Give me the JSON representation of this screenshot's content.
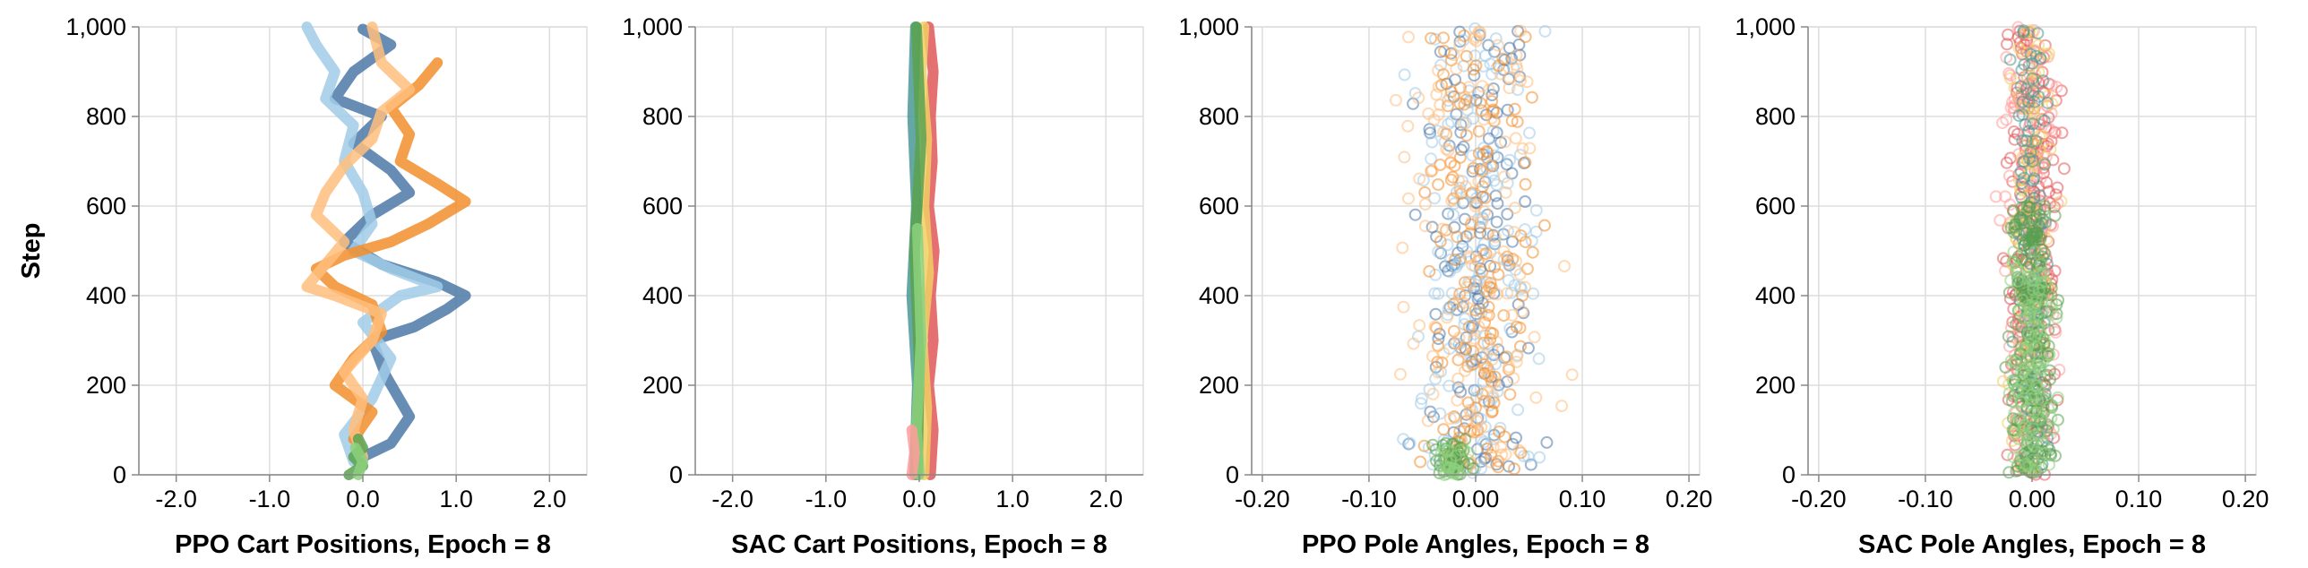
{
  "palette": {
    "dark_blue": "#4e79a7",
    "light_blue": "#a0cbe8",
    "orange": "#f28e2b",
    "light_orange": "#ffbe7d",
    "green": "#59a14f",
    "light_green": "#8cd17d",
    "yellow": "#f1ce63",
    "teal": "#499894",
    "red": "#e15759",
    "pink": "#ff9d9a",
    "grid": "#dddddd",
    "axis": "#888888"
  },
  "chart_data": [
    {
      "type": "line",
      "xlabel": "PPO Cart Positions, Epoch = 8",
      "ylabel": "Step",
      "xlim": [
        -2.4,
        2.4
      ],
      "ylim": [
        0,
        1000
      ],
      "x_ticks": [
        -2.0,
        -1.0,
        0.0,
        1.0,
        2.0
      ],
      "x_tick_labels": [
        "-2.0",
        "-1.0",
        "0.0",
        "1.0",
        "2.0"
      ],
      "y_ticks": [
        0,
        200,
        400,
        600,
        800,
        1000
      ],
      "y_tick_labels": [
        "0",
        "200",
        "400",
        "600",
        "800",
        "1,000"
      ],
      "grid": true,
      "series": [
        {
          "color": "#4e79a7",
          "points": [
            [
              0.0,
              40
            ],
            [
              0.3,
              70
            ],
            [
              0.5,
              130
            ],
            [
              0.25,
              220
            ],
            [
              0.1,
              300
            ],
            [
              0.55,
              330
            ],
            [
              0.9,
              370
            ],
            [
              1.1,
              400
            ],
            [
              0.8,
              430
            ],
            [
              0.2,
              470
            ],
            [
              -0.2,
              520
            ],
            [
              0.1,
              580
            ],
            [
              0.5,
              630
            ],
            [
              0.3,
              680
            ],
            [
              -0.1,
              740
            ],
            [
              0.2,
              800
            ],
            [
              -0.3,
              840
            ],
            [
              -0.1,
              900
            ],
            [
              0.3,
              960
            ],
            [
              0.0,
              995
            ]
          ]
        },
        {
          "color": "#a0cbe8",
          "points": [
            [
              -0.1,
              30
            ],
            [
              -0.2,
              90
            ],
            [
              0.1,
              170
            ],
            [
              0.3,
              260
            ],
            [
              0.0,
              340
            ],
            [
              0.4,
              400
            ],
            [
              0.8,
              420
            ],
            [
              0.3,
              460
            ],
            [
              -0.1,
              500
            ],
            [
              0.1,
              560
            ],
            [
              0.0,
              630
            ],
            [
              -0.2,
              700
            ],
            [
              -0.1,
              780
            ],
            [
              -0.4,
              840
            ],
            [
              -0.3,
              900
            ],
            [
              -0.5,
              960
            ],
            [
              -0.6,
              1000
            ]
          ]
        },
        {
          "color": "#f28e2b",
          "points": [
            [
              -0.1,
              80
            ],
            [
              0.1,
              140
            ],
            [
              -0.3,
              200
            ],
            [
              -0.1,
              260
            ],
            [
              0.2,
              320
            ],
            [
              0.1,
              380
            ],
            [
              -0.3,
              420
            ],
            [
              -0.5,
              460
            ],
            [
              -0.2,
              490
            ],
            [
              0.3,
              520
            ],
            [
              0.7,
              560
            ],
            [
              1.1,
              610
            ],
            [
              0.8,
              650
            ],
            [
              0.4,
              700
            ],
            [
              0.5,
              760
            ],
            [
              0.3,
              820
            ],
            [
              0.6,
              870
            ],
            [
              0.8,
              920
            ]
          ]
        },
        {
          "color": "#ffbe7d",
          "points": [
            [
              0.0,
              40
            ],
            [
              -0.1,
              100
            ],
            [
              0.0,
              170
            ],
            [
              -0.2,
              230
            ],
            [
              0.1,
              300
            ],
            [
              0.2,
              360
            ],
            [
              -0.3,
              400
            ],
            [
              -0.6,
              420
            ],
            [
              -0.4,
              470
            ],
            [
              -0.2,
              520
            ],
            [
              -0.5,
              580
            ],
            [
              -0.4,
              630
            ],
            [
              -0.2,
              690
            ],
            [
              0.1,
              750
            ],
            [
              0.2,
              810
            ],
            [
              0.5,
              860
            ],
            [
              0.2,
              920
            ],
            [
              0.1,
              1000
            ]
          ]
        },
        {
          "color": "#59a14f",
          "points": [
            [
              -0.15,
              0
            ],
            [
              0.0,
              20
            ],
            [
              -0.1,
              40
            ],
            [
              0.0,
              60
            ],
            [
              -0.05,
              80
            ]
          ]
        },
        {
          "color": "#8cd17d",
          "points": [
            [
              -0.05,
              0
            ],
            [
              0.0,
              30
            ],
            [
              -0.08,
              60
            ]
          ]
        }
      ]
    },
    {
      "type": "line",
      "xlabel": "SAC Cart Positions, Epoch = 8",
      "ylabel": "",
      "xlim": [
        -2.4,
        2.4
      ],
      "ylim": [
        0,
        1000
      ],
      "x_ticks": [
        -2.0,
        -1.0,
        0.0,
        1.0,
        2.0
      ],
      "x_tick_labels": [
        "-2.0",
        "-1.0",
        "0.0",
        "1.0",
        "2.0"
      ],
      "y_ticks": [
        0,
        200,
        400,
        600,
        800,
        1000
      ],
      "y_tick_labels": [
        "0",
        "200",
        "400",
        "600",
        "800",
        "1,000"
      ],
      "grid": true,
      "series": [
        {
          "color": "#e15759",
          "points": [
            [
              0.12,
              0
            ],
            [
              0.15,
              100
            ],
            [
              0.1,
              200
            ],
            [
              0.15,
              300
            ],
            [
              0.12,
              400
            ],
            [
              0.16,
              500
            ],
            [
              0.1,
              600
            ],
            [
              0.14,
              700
            ],
            [
              0.12,
              800
            ],
            [
              0.15,
              900
            ],
            [
              0.1,
              1000
            ]
          ]
        },
        {
          "color": "#f1ce63",
          "points": [
            [
              0.05,
              0
            ],
            [
              0.08,
              150
            ],
            [
              0.03,
              300
            ],
            [
              0.1,
              450
            ],
            [
              0.05,
              600
            ],
            [
              0.08,
              750
            ],
            [
              0.02,
              900
            ],
            [
              0.05,
              1000
            ]
          ]
        },
        {
          "color": "#499894",
          "points": [
            [
              -0.05,
              0
            ],
            [
              -0.02,
              200
            ],
            [
              -0.08,
              400
            ],
            [
              -0.03,
              600
            ],
            [
              -0.07,
              800
            ],
            [
              -0.04,
              1000
            ]
          ]
        },
        {
          "color": "#59a14f",
          "points": [
            [
              -0.02,
              0
            ],
            [
              0.0,
              250
            ],
            [
              -0.05,
              500
            ],
            [
              0.02,
              750
            ],
            [
              -0.03,
              1000
            ]
          ]
        },
        {
          "color": "#8cd17d",
          "points": [
            [
              0.0,
              0
            ],
            [
              -0.03,
              100
            ],
            [
              0.02,
              300
            ],
            [
              -0.02,
              550
            ]
          ]
        },
        {
          "color": "#ff9d9a",
          "points": [
            [
              -0.08,
              0
            ],
            [
              -0.05,
              50
            ],
            [
              -0.08,
              100
            ]
          ]
        }
      ]
    },
    {
      "type": "scatter",
      "xlabel": "PPO Pole Angles, Epoch = 8",
      "ylabel": "",
      "xlim": [
        -0.21,
        0.21
      ],
      "ylim": [
        0,
        1000
      ],
      "x_ticks": [
        -0.2,
        -0.1,
        0.0,
        0.1,
        0.2
      ],
      "x_tick_labels": [
        "-0.20",
        "-0.10",
        "0.00",
        "0.10",
        "0.20"
      ],
      "y_ticks": [
        0,
        200,
        400,
        600,
        800,
        1000
      ],
      "y_tick_labels": [
        "0",
        "200",
        "400",
        "600",
        "800",
        "1,000"
      ],
      "grid": true,
      "series": [
        {
          "color": "#4e79a7",
          "center": 0.0,
          "spread": 0.07,
          "ymin": 0,
          "ymax": 1000,
          "n": 150,
          "seed": 11
        },
        {
          "color": "#a0cbe8",
          "center": 0.0,
          "spread": 0.09,
          "ymin": 0,
          "ymax": 1000,
          "n": 150,
          "seed": 23
        },
        {
          "color": "#f28e2b",
          "center": 0.0,
          "spread": 0.07,
          "ymin": 0,
          "ymax": 1000,
          "n": 150,
          "seed": 37
        },
        {
          "color": "#ffbe7d",
          "center": 0.0,
          "spread": 0.1,
          "ymin": 0,
          "ymax": 1000,
          "n": 150,
          "seed": 41
        },
        {
          "color": "#59a14f",
          "center": -0.02,
          "spread": 0.03,
          "ymin": 0,
          "ymax": 80,
          "n": 40,
          "seed": 53
        },
        {
          "color": "#8cd17d",
          "center": -0.02,
          "spread": 0.02,
          "ymin": 0,
          "ymax": 60,
          "n": 25,
          "seed": 67
        }
      ]
    },
    {
      "type": "scatter",
      "xlabel": "SAC Pole Angles, Epoch = 8",
      "ylabel": "",
      "xlim": [
        -0.21,
        0.21
      ],
      "ylim": [
        0,
        1000
      ],
      "x_ticks": [
        -0.2,
        -0.1,
        0.0,
        0.1,
        0.2
      ],
      "x_tick_labels": [
        "-0.20",
        "-0.10",
        "0.00",
        "0.10",
        "0.20"
      ],
      "y_ticks": [
        0,
        200,
        400,
        600,
        800,
        1000
      ],
      "y_tick_labels": [
        "0",
        "200",
        "400",
        "600",
        "800",
        "1,000"
      ],
      "grid": true,
      "series": [
        {
          "color": "#e15759",
          "center": 0.0,
          "spread": 0.035,
          "ymin": 0,
          "ymax": 1000,
          "n": 220,
          "seed": 71
        },
        {
          "color": "#ff9d9a",
          "center": 0.0,
          "spread": 0.04,
          "ymin": 0,
          "ymax": 1000,
          "n": 140,
          "seed": 79
        },
        {
          "color": "#f1ce63",
          "center": 0.0,
          "spread": 0.03,
          "ymin": 0,
          "ymax": 1000,
          "n": 120,
          "seed": 83
        },
        {
          "color": "#499894",
          "center": 0.0,
          "spread": 0.025,
          "ymin": 0,
          "ymax": 1000,
          "n": 120,
          "seed": 89
        },
        {
          "color": "#59a14f",
          "center": 0.0,
          "spread": 0.03,
          "ymin": 0,
          "ymax": 600,
          "n": 200,
          "seed": 97
        },
        {
          "color": "#8cd17d",
          "center": 0.0,
          "spread": 0.03,
          "ymin": 0,
          "ymax": 500,
          "n": 120,
          "seed": 101
        }
      ]
    }
  ]
}
